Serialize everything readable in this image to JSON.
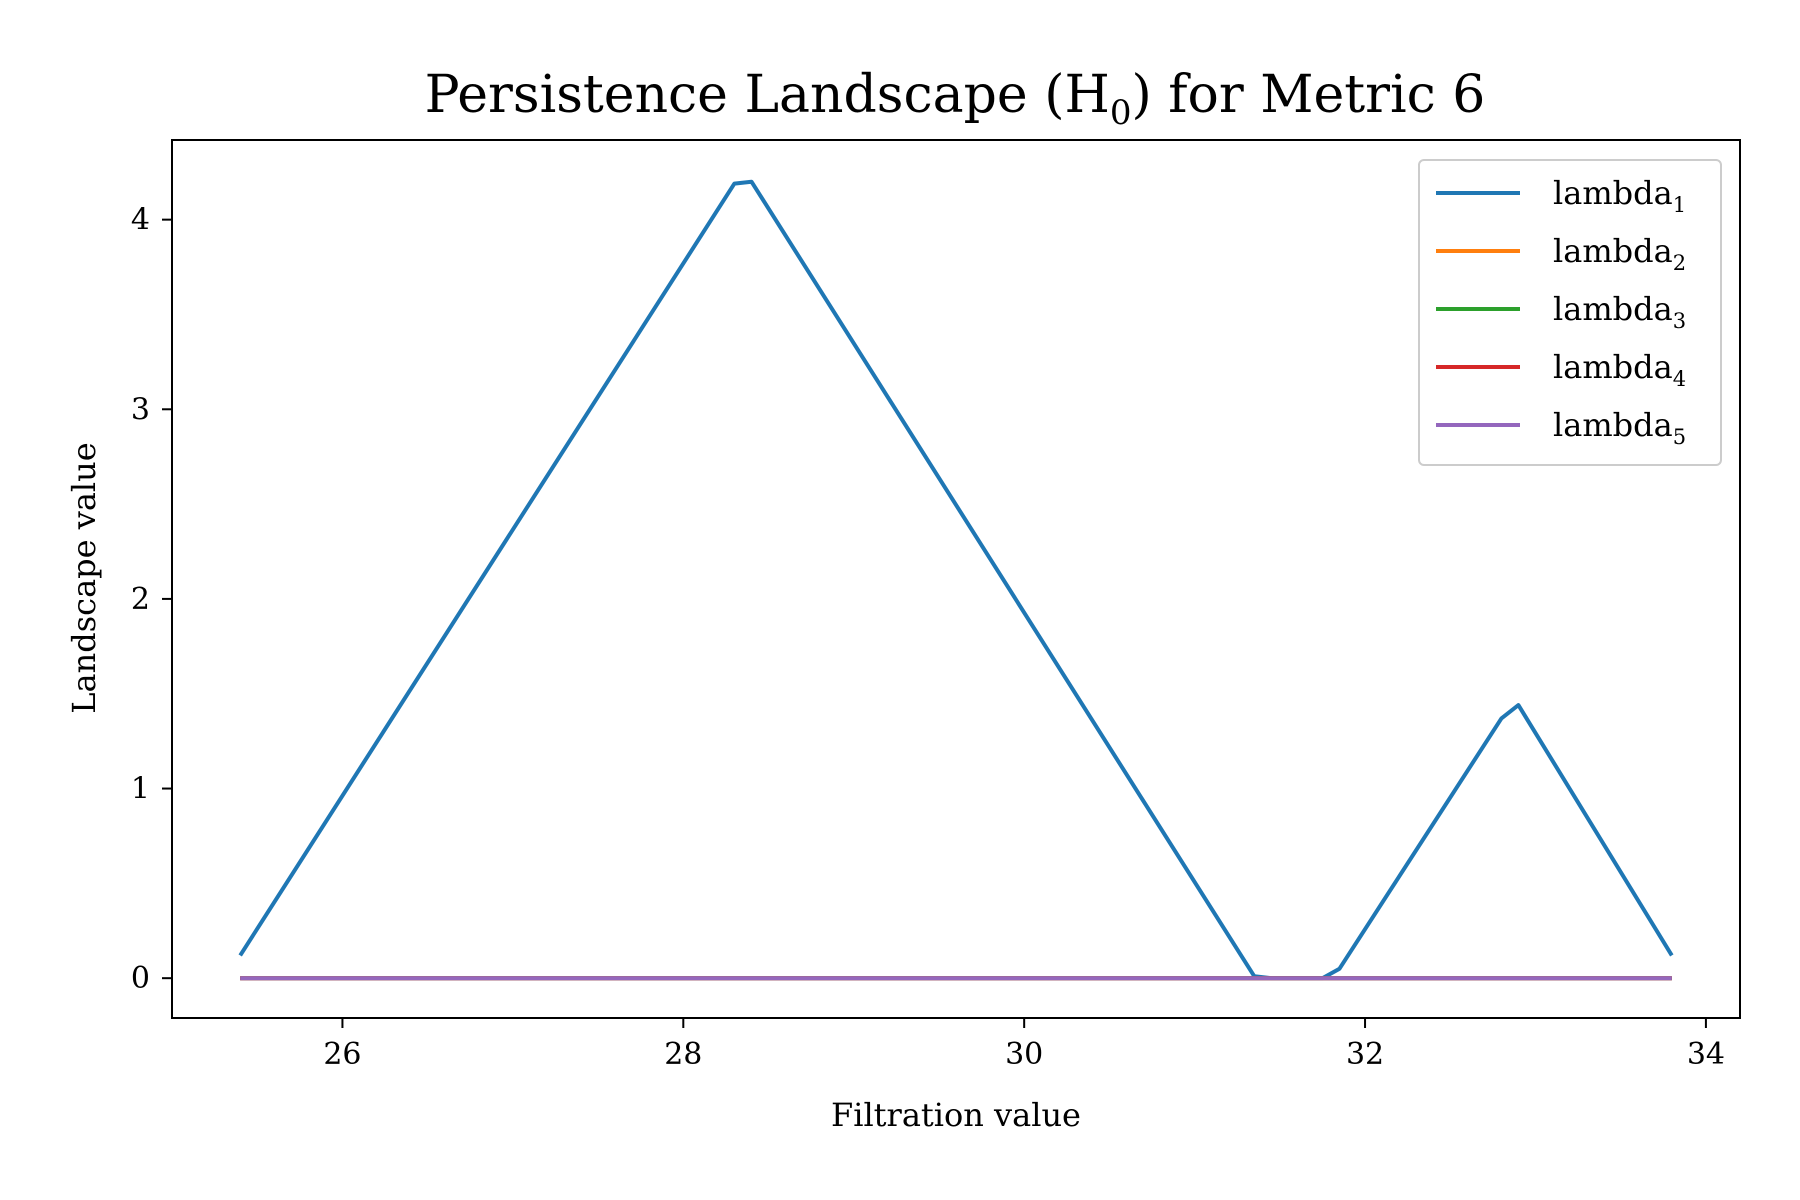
{
  "chart_data": {
    "type": "line",
    "title": "Persistence Landscape (H0) for Metric 6",
    "title_parts": {
      "main": "Persistence Landscape (H",
      "sub": "0",
      "tail": ") for Metric 6"
    },
    "xlabel": "Filtration value",
    "ylabel": "Landscape value",
    "xlim": [
      25.0,
      34.2
    ],
    "ylim": [
      -0.21,
      4.42
    ],
    "xticks": [
      26,
      28,
      30,
      32,
      34
    ],
    "yticks": [
      0,
      1,
      2,
      3,
      4
    ],
    "grid": false,
    "legend_position": "top-right",
    "series": [
      {
        "name": "lambda1",
        "label_main": "lambda",
        "label_sub": "1",
        "color": "#1f77b4",
        "x": [
          25.4,
          28.3,
          28.4,
          31.35,
          31.45,
          31.75,
          31.85,
          32.8,
          32.9,
          33.8
        ],
        "y": [
          0.12,
          4.19,
          4.2,
          0.01,
          0.0,
          0.0,
          0.05,
          1.37,
          1.44,
          0.12
        ]
      },
      {
        "name": "lambda2",
        "label_main": "lambda",
        "label_sub": "2",
        "color": "#ff7f0e",
        "x": [
          25.4,
          33.8
        ],
        "y": [
          0,
          0
        ]
      },
      {
        "name": "lambda3",
        "label_main": "lambda",
        "label_sub": "3",
        "color": "#2ca02c",
        "x": [
          25.4,
          33.8
        ],
        "y": [
          0,
          0
        ]
      },
      {
        "name": "lambda4",
        "label_main": "lambda",
        "label_sub": "4",
        "color": "#d62728",
        "x": [
          25.4,
          33.8
        ],
        "y": [
          0,
          0
        ]
      },
      {
        "name": "lambda5",
        "label_main": "lambda",
        "label_sub": "5",
        "color": "#9467bd",
        "x": [
          25.4,
          33.8
        ],
        "y": [
          0,
          0
        ]
      }
    ]
  }
}
